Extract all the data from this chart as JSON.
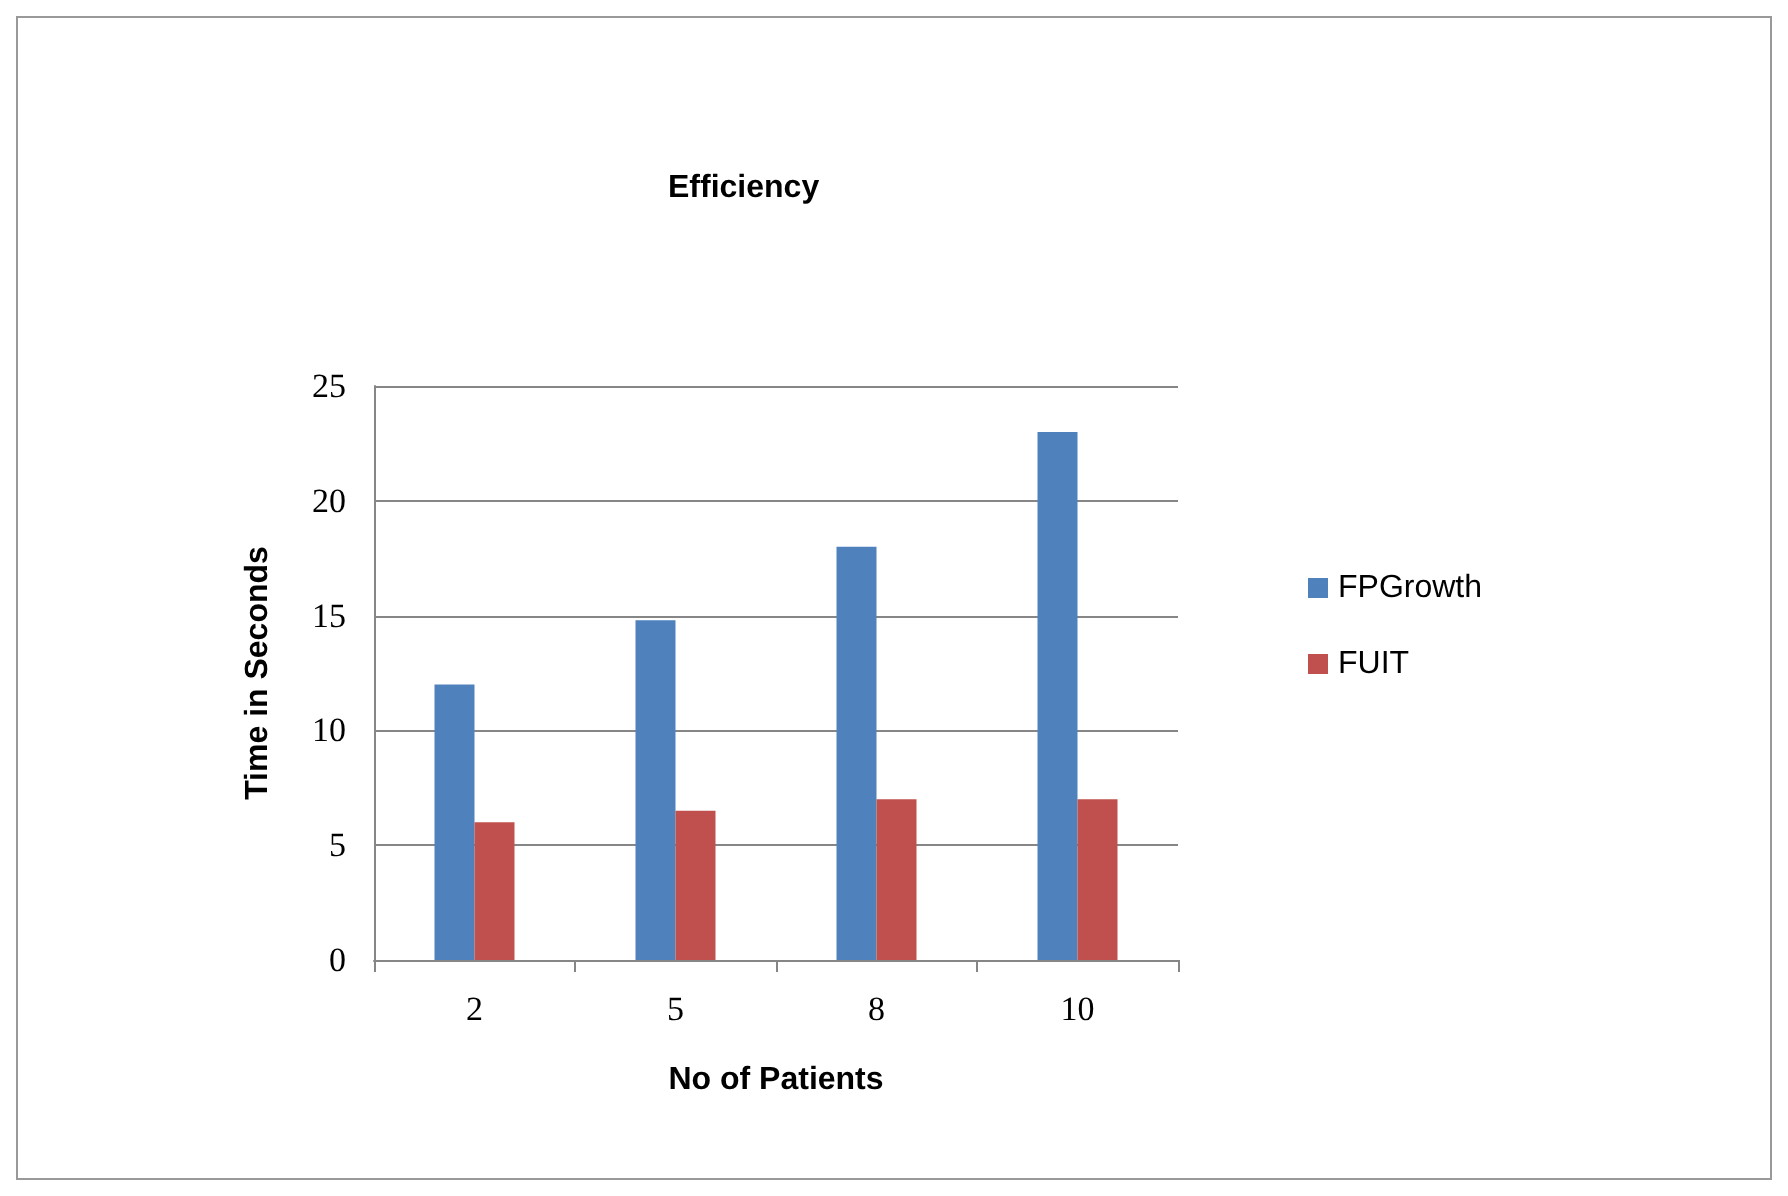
{
  "chart_data": {
    "type": "bar",
    "title": "Efficiency",
    "xlabel": "No of Patients",
    "ylabel": "Time in Seconds",
    "categories": [
      "2",
      "5",
      "8",
      "10"
    ],
    "series": [
      {
        "name": "FPGrowth",
        "color": "#4f81bd",
        "values": [
          12,
          14.8,
          18,
          23
        ]
      },
      {
        "name": "FUIT",
        "color": "#c0504d",
        "values": [
          6,
          6.5,
          7,
          7
        ]
      }
    ],
    "ylim": [
      0,
      25
    ],
    "yticks": [
      0,
      5,
      10,
      15,
      20,
      25
    ],
    "grid": "y",
    "legend": "right"
  }
}
